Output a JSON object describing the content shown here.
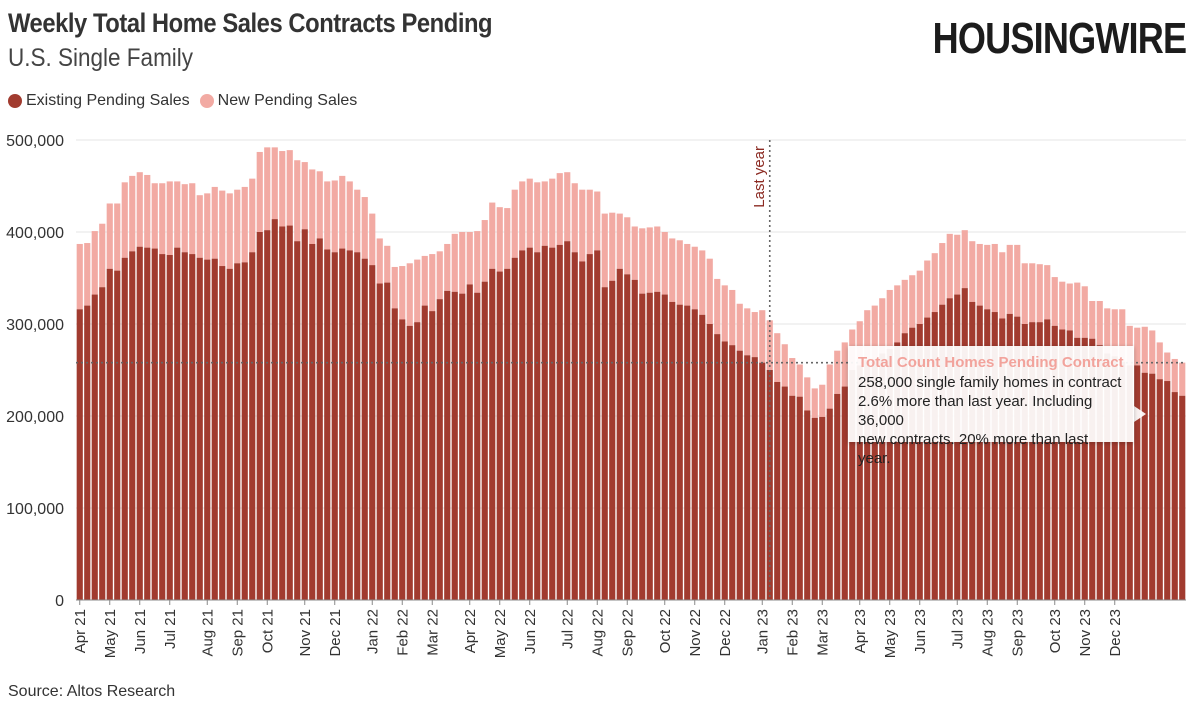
{
  "header": {
    "title": "Weekly Total Home Sales Contracts Pending",
    "subtitle": "U.S. Single Family",
    "logo": "HOUSINGWIRE"
  },
  "legend": {
    "existing_label": "Existing Pending Sales",
    "new_label": "New Pending Sales"
  },
  "annotation": {
    "title": "Total Count Homes Pending Contract",
    "lines": [
      "258,000 single family homes in contract",
      "2.6% more than last year. Including 36,000",
      "new contracts. 20% more than last year."
    ]
  },
  "source": "Source: Altos Research",
  "colors": {
    "existing": "#a13b2f",
    "new": "#f2aaa3",
    "marker": "#8b2a22",
    "grid": "#e4e4e4"
  },
  "chart_data": {
    "type": "bar",
    "stacked": true,
    "title": "Weekly Total Home Sales Contracts Pending",
    "subtitle": "U.S. Single Family",
    "xlabel": "",
    "ylabel": "",
    "ylim": [
      0,
      500000
    ],
    "y_ticks": [
      0,
      100000,
      200000,
      300000,
      400000,
      500000
    ],
    "y_tick_labels": [
      "0",
      "100,000",
      "200,000",
      "300,000",
      "400,000",
      "500,000"
    ],
    "x_tick_labels": [
      "Apr 21",
      "May 21",
      "Jun 21",
      "Jul 21",
      "Aug 21",
      "Sep 21",
      "Oct 21",
      "Nov 21",
      "Dec 21",
      "Jan 22",
      "Feb 22",
      "Mar 22",
      "Apr 22",
      "May 22",
      "Jun 22",
      "Jul 22",
      "Aug 22",
      "Sep 22",
      "Oct 22",
      "Nov 22",
      "Dec 22",
      "Jan 23",
      "Feb 23",
      "Mar 23",
      "Apr 23",
      "May 23",
      "Jun 23",
      "Jul 23",
      "Aug 23",
      "Sep 23",
      "Oct 23",
      "Nov 23",
      "Dec 23"
    ],
    "x_tick_weeks": [
      0,
      4,
      8,
      12,
      17,
      21,
      25,
      30,
      34,
      39,
      43,
      47,
      52,
      56,
      60,
      65,
      69,
      73,
      78,
      82,
      86,
      91,
      95,
      99,
      104,
      108,
      112,
      117,
      121,
      125,
      130,
      134,
      138
    ],
    "reference_marker": {
      "label": "Last year",
      "week": 92
    },
    "reference_line": {
      "value": 258000
    },
    "series": [
      {
        "name": "Existing Pending Sales",
        "values": [
          316000,
          320000,
          332000,
          340000,
          360000,
          358000,
          372000,
          379000,
          384000,
          383000,
          382000,
          376000,
          375000,
          383000,
          378000,
          376000,
          372000,
          370000,
          371000,
          363000,
          360000,
          366000,
          367000,
          378000,
          400000,
          402000,
          414000,
          406000,
          407000,
          390000,
          403000,
          387000,
          393000,
          381000,
          378000,
          382000,
          380000,
          378000,
          371000,
          364000,
          344000,
          345000,
          317000,
          305000,
          298000,
          302000,
          320000,
          314000,
          327000,
          336000,
          335000,
          333000,
          343000,
          334000,
          346000,
          360000,
          357000,
          360000,
          372000,
          380000,
          383000,
          378000,
          385000,
          383000,
          386000,
          390000,
          378000,
          368000,
          376000,
          380000,
          340000,
          347000,
          360000,
          354000,
          348000,
          333000,
          334000,
          335000,
          332000,
          324000,
          321000,
          320000,
          316000,
          310000,
          300000,
          289000,
          281000,
          277000,
          271000,
          266000,
          264000,
          258000,
          250000,
          237000,
          232000,
          222000,
          221000,
          206000,
          198000,
          199000,
          208000,
          224000,
          232000,
          250000,
          255000,
          261000,
          262000,
          268000,
          273000,
          280000,
          290000,
          296000,
          300000,
          307000,
          313000,
          321000,
          328000,
          332000,
          339000,
          324000,
          320000,
          316000,
          313000,
          306000,
          311000,
          308000,
          300000,
          302000,
          302000,
          305000,
          298000,
          294000,
          293000,
          285000,
          285000,
          284000,
          277000,
          268000,
          265000,
          259000,
          255000,
          255000,
          247000,
          246000,
          240000,
          238000,
          226000,
          222000
        ],
        "values_note": "weekly estimates"
      },
      {
        "name": "New Pending Sales",
        "values": [
          71000,
          68000,
          69000,
          69000,
          71000,
          73000,
          82000,
          82000,
          81000,
          79000,
          71000,
          77000,
          80000,
          72000,
          74000,
          77000,
          68000,
          72000,
          78000,
          82000,
          82000,
          80000,
          82000,
          80000,
          87000,
          90000,
          78000,
          82000,
          82000,
          88000,
          73000,
          81000,
          73000,
          74000,
          78000,
          79000,
          75000,
          68000,
          67000,
          56000,
          49000,
          40000,
          45000,
          58000,
          68000,
          68000,
          54000,
          62000,
          52000,
          51000,
          63000,
          67000,
          57000,
          67000,
          67000,
          72000,
          70000,
          66000,
          74000,
          75000,
          75000,
          76000,
          70000,
          75000,
          78000,
          75000,
          75000,
          78000,
          70000,
          64000,
          80000,
          74000,
          60000,
          62000,
          58000,
          71000,
          71000,
          71000,
          68000,
          69000,
          70000,
          67000,
          68000,
          70000,
          71000,
          60000,
          61000,
          60000,
          51000,
          51000,
          49000,
          57000,
          54000,
          53000,
          46000,
          41000,
          35000,
          36000,
          32000,
          35000,
          48000,
          47000,
          48000,
          44000,
          48000,
          54000,
          58000,
          60000,
          64000,
          62000,
          58000,
          57000,
          58000,
          62000,
          64000,
          67000,
          70000,
          65000,
          63000,
          66000,
          67000,
          70000,
          74000,
          72000,
          75000,
          78000,
          66000,
          64000,
          63000,
          59000,
          53000,
          52000,
          51000,
          60000,
          56000,
          41000,
          48000,
          49000,
          51000,
          57000,
          43000,
          41000,
          50000,
          47000,
          40000,
          31000,
          36000,
          36000
        ]
      }
    ]
  }
}
